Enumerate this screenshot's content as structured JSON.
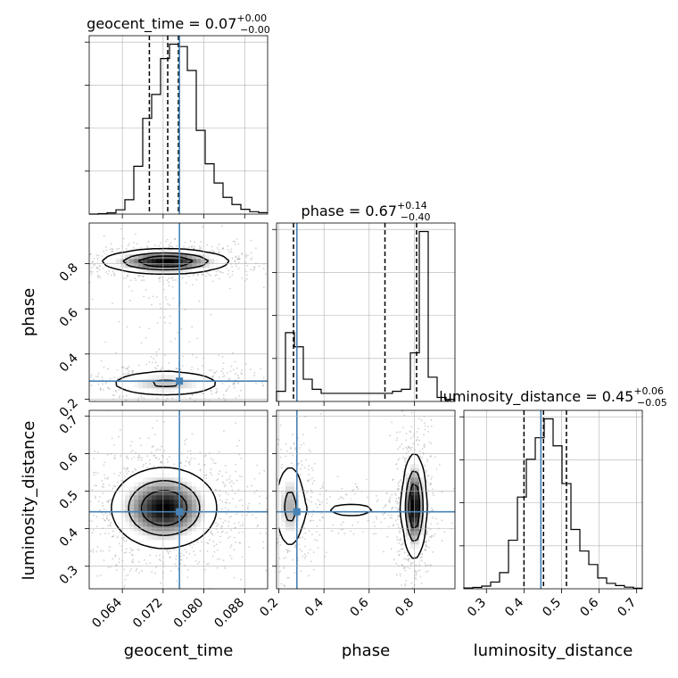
{
  "chart_data": {
    "type": "corner",
    "parameters": [
      "geocent_time",
      "phase",
      "luminosity_distance"
    ],
    "truth": {
      "geocent_time": 0.0752,
      "phase": 0.28,
      "luminosity_distance": 0.445
    },
    "titles": {
      "geocent_time": {
        "name": "geocent_time",
        "value": "0.07",
        "plus": "+0.00",
        "minus": "−0.00"
      },
      "phase": {
        "name": "phase",
        "value": "0.67",
        "plus": "+0.14",
        "minus": "−0.40"
      },
      "luminosity_distance": {
        "name": "luminosity_distance",
        "value": "0.45",
        "plus": "+0.06",
        "minus": "−0.05"
      }
    },
    "axes": {
      "geocent_time": {
        "range": [
          0.0575,
          0.0925
        ],
        "ticks": [
          0.064,
          0.072,
          0.08,
          0.088
        ],
        "tick_labels": [
          "0.064",
          "0.072",
          "0.080",
          "0.088"
        ],
        "quantiles": [
          0.0693,
          0.0729,
          0.075
        ]
      },
      "phase": {
        "range": [
          0.19,
          0.98
        ],
        "ticks": [
          0.2,
          0.4,
          0.6,
          0.8
        ],
        "tick_labels": [
          "0.2",
          "0.4",
          "0.6",
          "0.8"
        ],
        "quantiles": [
          0.265,
          0.67,
          0.81
        ]
      },
      "luminosity_distance": {
        "range": [
          0.24,
          0.715
        ],
        "ticks": [
          0.3,
          0.4,
          0.5,
          0.6,
          0.7
        ],
        "tick_labels": [
          "0.3",
          "0.4",
          "0.5",
          "0.6",
          "0.7"
        ],
        "quantiles": [
          0.4,
          0.452,
          0.513
        ]
      }
    },
    "histograms": {
      "geocent_time": {
        "edges_range": [
          0.0575,
          0.0925
        ],
        "counts": [
          0,
          0.2,
          0.5,
          1.8,
          6.0,
          20.0,
          40.0,
          50.0,
          65.0,
          71.0,
          70.0,
          60.0,
          35.0,
          21.0,
          13.0,
          7.0,
          4.0,
          2.0,
          1.0,
          0.6
        ]
      },
      "phase": {
        "edges_range": [
          0.19,
          0.98
        ],
        "counts": [
          5.0,
          34.0,
          27.0,
          11.0,
          6.0,
          4.0,
          4.0,
          4.0,
          4.0,
          4.0,
          4.0,
          4.0,
          4.0,
          5.0,
          6.0,
          24.0,
          84.0,
          12.0,
          2.0,
          1.0
        ]
      },
      "luminosity_distance": {
        "edges_range": [
          0.24,
          0.715
        ],
        "counts": [
          0.3,
          0.5,
          1.0,
          2.5,
          6.0,
          18.0,
          34.0,
          48.0,
          56.0,
          63.0,
          53.0,
          39.0,
          22.0,
          14.0,
          9.0,
          4.0,
          2.0,
          1.2,
          0.6,
          0.2
        ]
      }
    },
    "density_modes": {
      "phase_vs_geocent_time": [
        {
          "x": 0.0725,
          "y": 0.81,
          "sx": 0.0058,
          "sy": 0.025,
          "weight": 0.62
        },
        {
          "x": 0.0725,
          "y": 0.27,
          "sx": 0.006,
          "sy": 0.03,
          "weight": 0.3
        },
        {
          "x": 0.0725,
          "y": 0.55,
          "sx": 0.003,
          "sy": 0.18,
          "weight": 0.08
        }
      ],
      "luminosity_distance_vs_geocent_time": [
        {
          "x": 0.0722,
          "y": 0.455,
          "sx": 0.0048,
          "sy": 0.05,
          "weight": 1.0
        }
      ],
      "luminosity_distance_vs_phase": [
        {
          "x": 0.8,
          "y": 0.46,
          "sx": 0.025,
          "sy": 0.065,
          "weight": 0.55
        },
        {
          "x": 0.25,
          "y": 0.46,
          "sx": 0.035,
          "sy": 0.06,
          "weight": 0.3
        },
        {
          "x": 0.52,
          "y": 0.45,
          "sx": 0.15,
          "sy": 0.025,
          "weight": 0.15
        }
      ]
    },
    "contours": "filled 2D density with contour lines and scattered samples",
    "grid": true,
    "colors": {
      "truth": "#4682b4",
      "hist": "#000000",
      "scatter": "#9a9a9a",
      "grid": "#b0b0b0"
    }
  }
}
